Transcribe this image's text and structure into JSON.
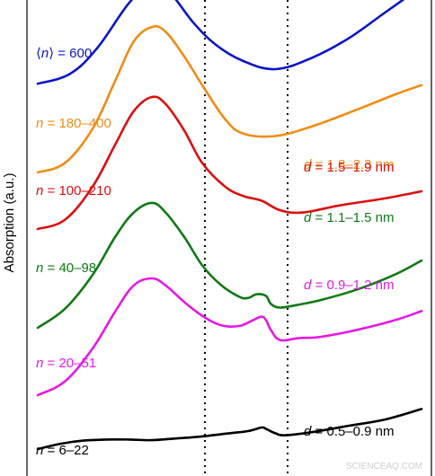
{
  "chart_data": {
    "type": "line",
    "title": "",
    "xlabel": "",
    "ylabel": "Absorption (a.u.)",
    "grid": false,
    "reference_lines": "two vertical dotted lines",
    "series": [
      {
        "key": "s600",
        "color": "#0a14c8",
        "label": {
          "prefix": "⟨",
          "var": "n",
          "suffix": "⟩ = 600"
        },
        "d_label": null,
        "points": [
          [
            0.0,
            0.08
          ],
          [
            0.07,
            0.11
          ],
          [
            0.13,
            0.19
          ],
          [
            0.2,
            0.33
          ],
          [
            0.25,
            0.39
          ],
          [
            0.29,
            0.36
          ],
          [
            0.34,
            0.27
          ],
          [
            0.39,
            0.2
          ],
          [
            0.45,
            0.15
          ],
          [
            0.52,
            0.125
          ],
          [
            0.6,
            0.16
          ],
          [
            0.68,
            0.22
          ],
          [
            0.76,
            0.3
          ],
          [
            0.84,
            0.38
          ]
        ]
      },
      {
        "key": "s180",
        "color": "#f08c14",
        "label": {
          "prefix": "",
          "var": "n",
          "suffix": " = 180–400"
        },
        "d_label": {
          "var": "d",
          "text": " = 1.8–2.3 nm"
        },
        "points": [
          [
            0.0,
            0.0
          ],
          [
            0.06,
            0.02
          ],
          [
            0.12,
            0.09
          ],
          [
            0.17,
            0.19
          ],
          [
            0.21,
            0.27
          ],
          [
            0.25,
            0.3
          ],
          [
            0.28,
            0.29
          ],
          [
            0.32,
            0.24
          ],
          [
            0.36,
            0.18
          ],
          [
            0.41,
            0.11
          ],
          [
            0.45,
            0.08
          ],
          [
            0.52,
            0.075
          ],
          [
            0.6,
            0.095
          ],
          [
            0.7,
            0.13
          ],
          [
            0.78,
            0.16
          ],
          [
            0.84,
            0.18
          ]
        ]
      },
      {
        "key": "s100",
        "color": "#dc0f0f",
        "label": {
          "prefix": "",
          "var": "n",
          "suffix": " = 100–210"
        },
        "d_label": {
          "var": "d",
          "text": " = 1.5–1.9 nm"
        },
        "points": [
          [
            0.0,
            0.0
          ],
          [
            0.06,
            0.02
          ],
          [
            0.12,
            0.09
          ],
          [
            0.17,
            0.18
          ],
          [
            0.21,
            0.25
          ],
          [
            0.25,
            0.28
          ],
          [
            0.28,
            0.265
          ],
          [
            0.32,
            0.21
          ],
          [
            0.36,
            0.14
          ],
          [
            0.41,
            0.09
          ],
          [
            0.45,
            0.07
          ],
          [
            0.49,
            0.06
          ],
          [
            0.53,
            0.04
          ],
          [
            0.58,
            0.035
          ],
          [
            0.66,
            0.05
          ],
          [
            0.76,
            0.065
          ],
          [
            0.84,
            0.08
          ]
        ]
      },
      {
        "key": "s40",
        "color": "#0f7a14",
        "label": {
          "prefix": "",
          "var": "n",
          "suffix": " = 40–98"
        },
        "d_label": {
          "var": "d",
          "text": " = 1.1–1.5 nm"
        },
        "points": [
          [
            0.0,
            0.0
          ],
          [
            0.06,
            0.04
          ],
          [
            0.12,
            0.11
          ],
          [
            0.17,
            0.19
          ],
          [
            0.21,
            0.24
          ],
          [
            0.25,
            0.26
          ],
          [
            0.28,
            0.24
          ],
          [
            0.32,
            0.19
          ],
          [
            0.36,
            0.13
          ],
          [
            0.4,
            0.09
          ],
          [
            0.44,
            0.065
          ],
          [
            0.46,
            0.062
          ],
          [
            0.48,
            0.07
          ],
          [
            0.5,
            0.066
          ],
          [
            0.51,
            0.05
          ],
          [
            0.53,
            0.042
          ],
          [
            0.57,
            0.048
          ],
          [
            0.62,
            0.058
          ],
          [
            0.7,
            0.08
          ],
          [
            0.78,
            0.11
          ],
          [
            0.84,
            0.14
          ]
        ]
      },
      {
        "key": "s20",
        "color": "#e619e6",
        "label": {
          "prefix": "",
          "var": "n",
          "suffix": " = 20–51"
        },
        "d_label": {
          "var": "d",
          "text": " = 0.9–1.2 nm"
        },
        "points": [
          [
            0.0,
            0.0
          ],
          [
            0.06,
            0.03
          ],
          [
            0.12,
            0.1
          ],
          [
            0.17,
            0.18
          ],
          [
            0.21,
            0.235
          ],
          [
            0.25,
            0.25
          ],
          [
            0.28,
            0.235
          ],
          [
            0.32,
            0.2
          ],
          [
            0.36,
            0.17
          ],
          [
            0.4,
            0.15
          ],
          [
            0.44,
            0.148
          ],
          [
            0.47,
            0.16
          ],
          [
            0.49,
            0.168
          ],
          [
            0.5,
            0.16
          ],
          [
            0.51,
            0.14
          ],
          [
            0.53,
            0.118
          ],
          [
            0.57,
            0.122
          ],
          [
            0.62,
            0.125
          ],
          [
            0.7,
            0.14
          ],
          [
            0.78,
            0.16
          ],
          [
            0.84,
            0.18
          ]
        ]
      },
      {
        "key": "s6",
        "color": "#000000",
        "label": {
          "prefix": "",
          "var": "n",
          "suffix": " = 6–22"
        },
        "d_label": {
          "var": "d",
          "text": " = 0.5–0.9 nm"
        },
        "points": [
          [
            0.0,
            0.0
          ],
          [
            0.05,
            0.025
          ],
          [
            0.1,
            0.04
          ],
          [
            0.15,
            0.045
          ],
          [
            0.2,
            0.045
          ],
          [
            0.25,
            0.042
          ],
          [
            0.3,
            0.05
          ],
          [
            0.36,
            0.06
          ],
          [
            0.42,
            0.075
          ],
          [
            0.46,
            0.085
          ],
          [
            0.49,
            0.102
          ],
          [
            0.5,
            0.095
          ],
          [
            0.52,
            0.075
          ],
          [
            0.54,
            0.065
          ],
          [
            0.6,
            0.08
          ],
          [
            0.68,
            0.11
          ],
          [
            0.76,
            0.14
          ],
          [
            0.84,
            0.19
          ]
        ]
      }
    ]
  },
  "watermark": "SCIENCEAQ.COM"
}
